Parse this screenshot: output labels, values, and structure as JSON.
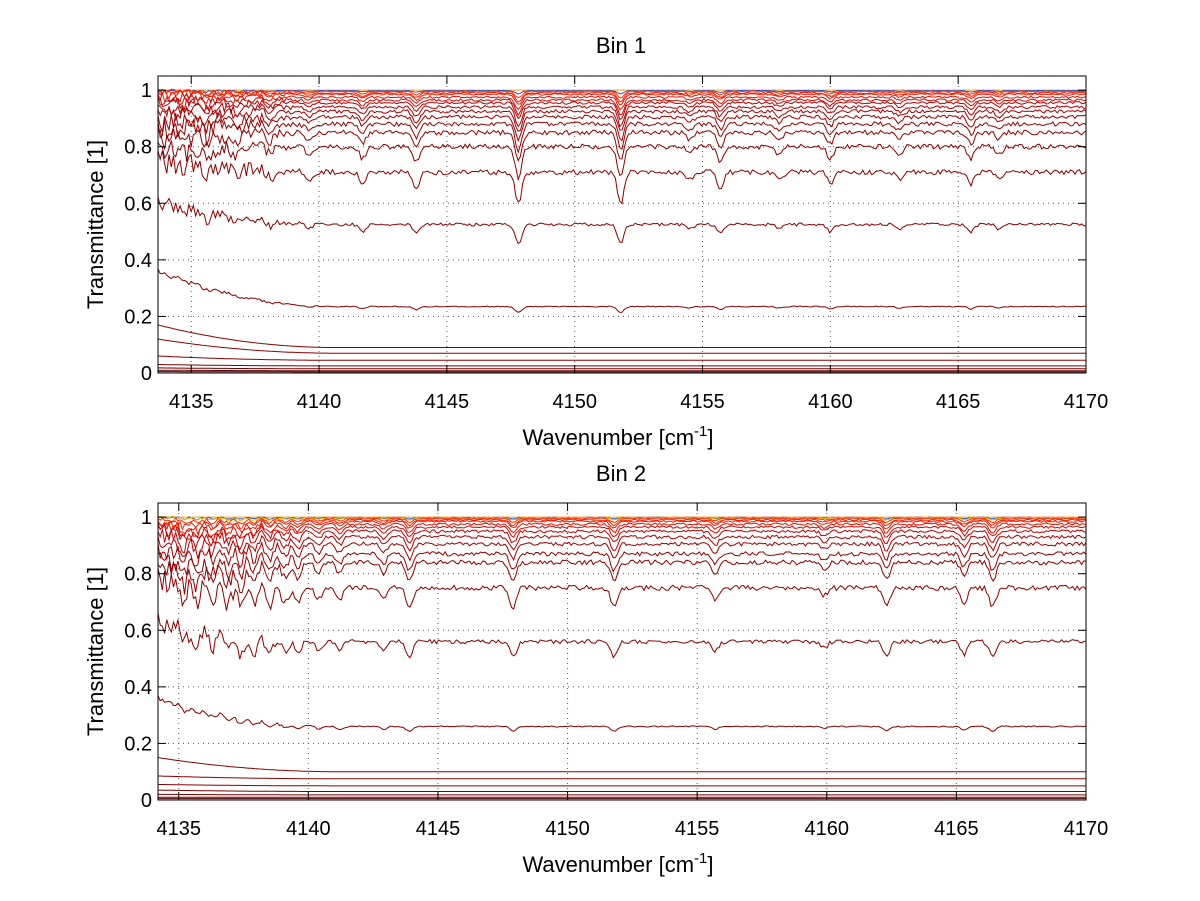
{
  "figure": {
    "background": "#ffffff"
  },
  "chart_data": [
    {
      "type": "line",
      "title": "Bin 1",
      "xlabel": "Wavenumber [cm",
      "xlabel_sup": "-1",
      "xlabel_tail": "]",
      "ylabel": "Transmittance [1]",
      "xlim": [
        4133.7,
        4170
      ],
      "ylim": [
        0,
        1.05
      ],
      "xticks": [
        4135,
        4140,
        4145,
        4150,
        4155,
        4160,
        4165,
        4170
      ],
      "yticks": [
        0,
        0.2,
        0.4,
        0.6,
        0.8,
        1
      ],
      "ytick_labels": [
        "0",
        "0.2",
        "0.4",
        "0.6",
        "0.8",
        "1"
      ],
      "grid": true,
      "grid_style": "dotted",
      "line_colors": [
        "#8b0000",
        "#a00000",
        "#b40000",
        "#c80000",
        "#dc1000",
        "#f01e00",
        "#ff2a00",
        "#ff4000"
      ],
      "top_line_colors": [
        "#f5a623",
        "#3050c8",
        "#e8c000"
      ],
      "absorption_lines": [
        {
          "x": 4135.6,
          "w": 3
        },
        {
          "x": 4136.8,
          "w": 2
        },
        {
          "x": 4138.1,
          "w": 2
        },
        {
          "x": 4139.6,
          "w": 2
        },
        {
          "x": 4141.7,
          "w": 3
        },
        {
          "x": 4143.8,
          "w": 4
        },
        {
          "x": 4147.8,
          "w": 8
        },
        {
          "x": 4151.8,
          "w": 8
        },
        {
          "x": 4154.5,
          "w": 2
        },
        {
          "x": 4155.7,
          "w": 4
        },
        {
          "x": 4158.0,
          "w": 2
        },
        {
          "x": 4160.0,
          "w": 3
        },
        {
          "x": 4162.7,
          "w": 2
        },
        {
          "x": 4165.5,
          "w": 3
        },
        {
          "x": 4166.6,
          "w": 2
        }
      ],
      "series": [
        {
          "values_start": 1.0,
          "values_plateau": 1.0,
          "strength": 0.0,
          "color": "#f5a623"
        },
        {
          "values_start": 0.998,
          "values_plateau": 0.998,
          "strength": 0.005,
          "color": "#3050c8"
        },
        {
          "values_start": 0.995,
          "values_plateau": 0.995,
          "strength": 0.01,
          "color": "#ff2a00"
        },
        {
          "values_start": 0.99,
          "values_plateau": 0.99,
          "strength": 0.014,
          "color": "#ff2000"
        },
        {
          "values_start": 0.985,
          "values_plateau": 0.985,
          "strength": 0.017,
          "color": "#f01800"
        },
        {
          "values_start": 0.975,
          "values_plateau": 0.975,
          "strength": 0.02,
          "color": "#e01000"
        },
        {
          "values_start": 0.965,
          "values_plateau": 0.965,
          "strength": 0.023,
          "color": "#d00800"
        },
        {
          "values_start": 0.95,
          "values_plateau": 0.955,
          "strength": 0.026,
          "color": "#c00000"
        },
        {
          "values_start": 0.93,
          "values_plateau": 0.94,
          "strength": 0.03,
          "color": "#b00000"
        },
        {
          "values_start": 0.91,
          "values_plateau": 0.925,
          "strength": 0.034,
          "color": "#a80000"
        },
        {
          "values_start": 0.885,
          "values_plateau": 0.905,
          "strength": 0.038,
          "color": "#a00000"
        },
        {
          "values_start": 0.86,
          "values_plateau": 0.88,
          "strength": 0.042,
          "color": "#980000"
        },
        {
          "values_start": 0.82,
          "values_plateau": 0.85,
          "strength": 0.046,
          "color": "#900000"
        },
        {
          "values_start": 0.78,
          "values_plateau": 0.8,
          "strength": 0.05,
          "color": "#8b0000"
        },
        {
          "values_start": 0.75,
          "values_plateau": 0.71,
          "strength": 0.05,
          "color": "#8b0000"
        },
        {
          "values_start": 0.6,
          "values_plateau": 0.525,
          "strength": 0.03,
          "color": "#8b0000"
        },
        {
          "values_start": 0.36,
          "values_plateau": 0.235,
          "strength": 0.01,
          "color": "#8b0000"
        },
        {
          "values_start": 0.17,
          "values_plateau": 0.09,
          "strength": 0.0,
          "color": "#8b0000"
        },
        {
          "values_start": 0.12,
          "values_plateau": 0.07,
          "strength": 0.0,
          "color": "#8b0000"
        },
        {
          "values_start": 0.06,
          "values_plateau": 0.045,
          "strength": 0.0,
          "color": "#8b0000"
        },
        {
          "values_start": 0.03,
          "values_plateau": 0.025,
          "strength": 0.0,
          "color": "#7a0000"
        },
        {
          "values_start": 0.018,
          "values_plateau": 0.015,
          "strength": 0.0,
          "color": "#700000"
        },
        {
          "values_start": 0.01,
          "values_plateau": 0.008,
          "strength": 0.0,
          "color": "#600000"
        },
        {
          "values_start": 0.005,
          "values_plateau": 0.004,
          "strength": 0.0,
          "color": "#500000"
        }
      ]
    },
    {
      "type": "line",
      "title": "Bin 2",
      "xlabel": "Wavenumber [cm",
      "xlabel_sup": "-1",
      "xlabel_tail": "]",
      "ylabel": "Transmittance [1]",
      "xlim": [
        4134.2,
        4170
      ],
      "ylim": [
        0,
        1.05
      ],
      "xticks": [
        4135,
        4140,
        4145,
        4150,
        4155,
        4160,
        4165,
        4170
      ],
      "yticks": [
        0,
        0.2,
        0.4,
        0.6,
        0.8,
        1
      ],
      "ytick_labels": [
        "0",
        "0.2",
        "0.4",
        "0.6",
        "0.8",
        "1"
      ],
      "grid": true,
      "grid_style": "dotted",
      "absorption_lines": [
        {
          "x": 4135.2,
          "w": 5
        },
        {
          "x": 4135.7,
          "w": 5
        },
        {
          "x": 4136.3,
          "w": 5
        },
        {
          "x": 4136.9,
          "w": 5
        },
        {
          "x": 4137.4,
          "w": 6
        },
        {
          "x": 4137.9,
          "w": 5
        },
        {
          "x": 4138.5,
          "w": 5
        },
        {
          "x": 4139.1,
          "w": 4
        },
        {
          "x": 4139.6,
          "w": 4
        },
        {
          "x": 4140.4,
          "w": 3
        },
        {
          "x": 4141.2,
          "w": 3
        },
        {
          "x": 4142.9,
          "w": 3
        },
        {
          "x": 4143.9,
          "w": 5
        },
        {
          "x": 4147.9,
          "w": 5
        },
        {
          "x": 4151.8,
          "w": 5
        },
        {
          "x": 4155.7,
          "w": 3
        },
        {
          "x": 4159.9,
          "w": 2
        },
        {
          "x": 4162.3,
          "w": 5
        },
        {
          "x": 4165.3,
          "w": 4
        },
        {
          "x": 4166.4,
          "w": 5
        }
      ],
      "series": [
        {
          "values_start": 1.0,
          "values_plateau": 1.0,
          "strength": 0.0,
          "color": "#f5a623"
        },
        {
          "values_start": 1.0,
          "values_plateau": 0.999,
          "strength": 0.004,
          "color": "#3050c8"
        },
        {
          "values_start": 1.0,
          "values_plateau": 0.998,
          "strength": 0.006,
          "color": "#e8c000"
        },
        {
          "values_start": 0.99,
          "values_plateau": 0.995,
          "strength": 0.01,
          "color": "#ff2a00"
        },
        {
          "values_start": 0.98,
          "values_plateau": 0.99,
          "strength": 0.014,
          "color": "#ff2000"
        },
        {
          "values_start": 0.97,
          "values_plateau": 0.985,
          "strength": 0.018,
          "color": "#f01800"
        },
        {
          "values_start": 0.96,
          "values_plateau": 0.975,
          "strength": 0.022,
          "color": "#e01000"
        },
        {
          "values_start": 0.95,
          "values_plateau": 0.965,
          "strength": 0.025,
          "color": "#d00800"
        },
        {
          "values_start": 0.93,
          "values_plateau": 0.95,
          "strength": 0.03,
          "color": "#c00000"
        },
        {
          "values_start": 0.91,
          "values_plateau": 0.93,
          "strength": 0.034,
          "color": "#b00000"
        },
        {
          "values_start": 0.88,
          "values_plateau": 0.905,
          "strength": 0.038,
          "color": "#a00000"
        },
        {
          "values_start": 0.84,
          "values_plateau": 0.87,
          "strength": 0.042,
          "color": "#980000"
        },
        {
          "values_start": 0.8,
          "values_plateau": 0.84,
          "strength": 0.046,
          "color": "#900000"
        },
        {
          "values_start": 0.78,
          "values_plateau": 0.75,
          "strength": 0.05,
          "color": "#8b0000"
        },
        {
          "values_start": 0.63,
          "values_plateau": 0.56,
          "strength": 0.04,
          "color": "#8b0000"
        },
        {
          "values_start": 0.36,
          "values_plateau": 0.26,
          "strength": 0.012,
          "color": "#8b0000"
        },
        {
          "values_start": 0.15,
          "values_plateau": 0.1,
          "strength": 0.0,
          "color": "#8b0000"
        },
        {
          "values_start": 0.085,
          "values_plateau": 0.075,
          "strength": 0.0,
          "color": "#8b0000"
        },
        {
          "values_start": 0.055,
          "values_plateau": 0.05,
          "strength": 0.0,
          "color": "#8b0000"
        },
        {
          "values_start": 0.035,
          "values_plateau": 0.03,
          "strength": 0.0,
          "color": "#7a0000"
        },
        {
          "values_start": 0.02,
          "values_plateau": 0.018,
          "strength": 0.0,
          "color": "#700000"
        },
        {
          "values_start": 0.01,
          "values_plateau": 0.01,
          "strength": 0.0,
          "color": "#600000"
        },
        {
          "values_start": 0.005,
          "values_plateau": 0.005,
          "strength": 0.0,
          "color": "#500000"
        }
      ]
    }
  ]
}
